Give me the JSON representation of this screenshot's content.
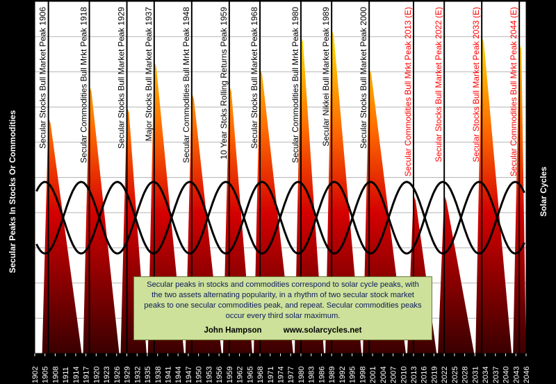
{
  "chart_data": {
    "type": "area",
    "ylabel_left": "Secular Peaks In Stocks Or Commodities",
    "ylabel_right": "Solar Cycles",
    "x_ticks": [
      "1902",
      "1905",
      "1908",
      "1911",
      "1914",
      "1917",
      "1920",
      "1923",
      "1926",
      "1929",
      "1932",
      "1935",
      "1938",
      "1941",
      "1944",
      "1947",
      "1950",
      "1953",
      "1956",
      "1959",
      "1962",
      "1965",
      "1968",
      "1971",
      "1974",
      "1977",
      "1980",
      "1983",
      "1986",
      "1989",
      "1992",
      "1995",
      "1998",
      "2001",
      "2004",
      "2007",
      "2010",
      "2013",
      "2016",
      "2019",
      "2022",
      "2025",
      "2028",
      "2031",
      "2034",
      "2037",
      "2040",
      "2043",
      "2046"
    ],
    "x_range": [
      1902,
      2046
    ],
    "peaks": [
      {
        "year": 1906,
        "label": "Secular Stocks  Bull  Market Peak 1906",
        "color": "#000000",
        "height": 0.67
      },
      {
        "year": 1918,
        "label": "Secular Commodities  Bull  Mrkt Peak 1918",
        "color": "#000000",
        "height": 0.76
      },
      {
        "year": 1929,
        "label": "Secular Stocks  Bull  Market Peak 1929",
        "color": "#000000",
        "height": 0.7
      },
      {
        "year": 1937,
        "label": "Major Stocks  Bull  Market Peak 1937",
        "color": "#000000",
        "height": 0.83
      },
      {
        "year": 1948,
        "label": "Secular Commodities  Bull  Mrkt Peak 1948",
        "color": "#000000",
        "height": 0.74
      },
      {
        "year": 1959,
        "label": "10 Year Stcks Rolling Returns  Peak 1959",
        "color": "#000000",
        "height": 0.76
      },
      {
        "year": 1968,
        "label": "Secular Stocks  Bull  Market Peak 1968",
        "color": "#000000",
        "height": 0.81
      },
      {
        "year": 1980,
        "label": "Secular Commodities  Bull  Mrkt Peak 1980",
        "color": "#000000",
        "height": 0.9
      },
      {
        "year": 1989,
        "label": "Secular Nikkei  Bull  Market Peak 1989",
        "color": "#000000",
        "height": 0.92
      },
      {
        "year": 2000,
        "label": "Secular Stocks  Bull  Market Peak 2000",
        "color": "#000000",
        "height": 0.81
      },
      {
        "year": 2013,
        "label": "Secular Commodities  Bull  Mrkt Peak 2013  (E)",
        "color": "#ff0000",
        "height": 0.45
      },
      {
        "year": 2022,
        "label": "Secular Stocks  Bull  Market Peak 2022  (E)",
        "color": "#ff0000",
        "height": 0.45
      },
      {
        "year": 2033,
        "label": "Secular Stocks  Bull  Market Peak 2033  (E)",
        "color": "#ff0000",
        "height": 0.9
      },
      {
        "year": 2044,
        "label": "Secular Commodities  Bull  Mrkt Peak 2044  (E)",
        "color": "#ff0000",
        "height": 0.88
      }
    ],
    "solar_cycle_years": [
      1905,
      1917,
      1928,
      1937,
      1947,
      1958,
      1968,
      1979,
      1989,
      2000,
      2013,
      2024,
      2035,
      2046
    ],
    "grid": "horizontal",
    "gridline_count": 10
  },
  "note": {
    "text": "Secular peaks in stocks and commodities correspond to solar cycle peaks, with the two assets alternating popularity, in a rhythm of two secular stock market peaks to one secular commodities peak, and repeat. Secular commodities peaks occur every third solar maximum.",
    "author": "John Hampson",
    "website": "www.solarcycles.net"
  },
  "colors": {
    "background": "#000000",
    "plot_background": "#ffffff",
    "peak_top": "#ffd400",
    "peak_mid": "#ff6a00",
    "peak_low": "#d40000",
    "peak_base": "#3a0000",
    "curve": "#000000"
  }
}
